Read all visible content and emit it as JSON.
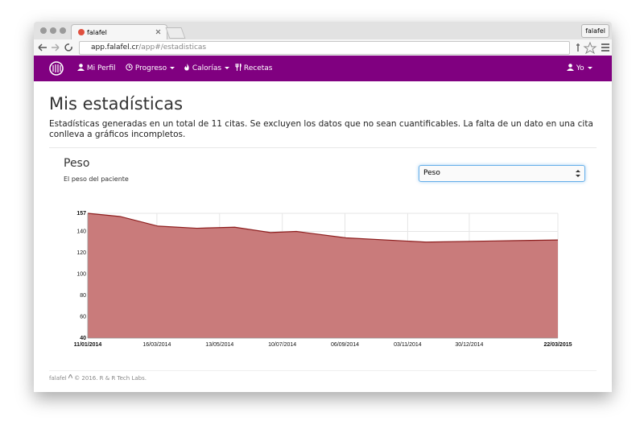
{
  "browser": {
    "tab_title": "falafel",
    "url_domain": "app.falafel.cr",
    "url_path": "/app#/estadisticas",
    "profile_button": "falafel"
  },
  "nav": {
    "brand_items": [
      "Mi Perfil",
      "Progreso",
      "Calorías",
      "Recetas"
    ],
    "user": "Yo"
  },
  "header": {
    "title": "Mis estadísticas",
    "description": "Estadísticas generadas en un total de 11 citas. Se excluyen los datos que no sean cuantificables. La falta de un dato en una cita conlleva a gráficos incompletos."
  },
  "panel": {
    "title": "Peso",
    "subtitle": "El peso del paciente",
    "select_value": "Peso"
  },
  "chart_data": {
    "type": "area",
    "x": [
      "11/01/2014",
      "10/02/2014",
      "17/03/2014",
      "22/04/2014",
      "27/05/2014",
      "29/06/2014",
      "23/07/2014",
      "07/09/2014",
      "20/11/2014",
      "18/01/2015",
      "22/03/2015"
    ],
    "series": [
      {
        "name": "Peso",
        "color": "#c97b7b",
        "line_color": "#8e1f1f",
        "values": [
          157,
          154,
          145,
          143,
          144,
          139,
          140,
          134,
          130,
          131,
          132
        ]
      }
    ],
    "xlim": [
      "11/01/2014",
      "22/03/2015"
    ],
    "xticks": [
      "11/01/2014",
      "16/03/2014",
      "13/05/2014",
      "10/07/2014",
      "06/09/2014",
      "03/11/2014",
      "30/12/2014",
      "22/03/2015"
    ],
    "ylim": [
      40,
      157
    ],
    "yticks": [
      40,
      60,
      80,
      100,
      120,
      140,
      157
    ],
    "grid": true
  },
  "footer": {
    "brand": "falafel",
    "text": "© 2016. R & R Tech Labs."
  }
}
